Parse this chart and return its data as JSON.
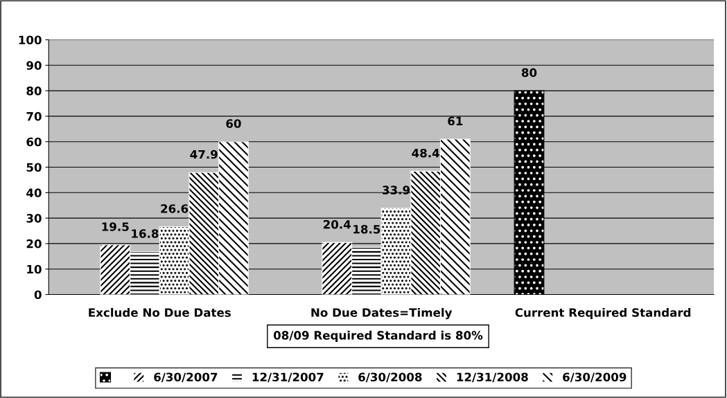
{
  "chart_data": {
    "type": "bar",
    "categories": [
      "Exclude No Due Dates",
      "No Due Dates=Timely",
      "Current Required Standard"
    ],
    "series": [
      {
        "color": "#000000",
        "values": [
          null,
          null,
          80
        ]
      },
      {
        "name": "6/30/2007",
        "color": "#ffffff",
        "values": [
          19.5,
          20.4,
          null
        ]
      },
      {
        "name": "12/31/2007",
        "color": "#ffffff",
        "values": [
          16.8,
          18.5,
          null
        ]
      },
      {
        "name": "6/30/2008",
        "color": "#ffffff",
        "values": [
          26.6,
          33.9,
          null
        ]
      },
      {
        "name": "12/31/2008",
        "color": "#ffffff",
        "values": [
          47.9,
          48.4,
          null
        ]
      },
      {
        "name": "6/30/2009",
        "color": "#ffffff",
        "values": [
          60,
          61,
          null
        ]
      }
    ],
    "ylim": [
      0,
      100
    ],
    "yticks": [
      0,
      10,
      20,
      30,
      40,
      50,
      60,
      70,
      80,
      90,
      100
    ],
    "grid": "y",
    "legend": "bottom",
    "data_labels": true,
    "annotations": [
      "08/09 Required Standard is 80%"
    ]
  }
}
